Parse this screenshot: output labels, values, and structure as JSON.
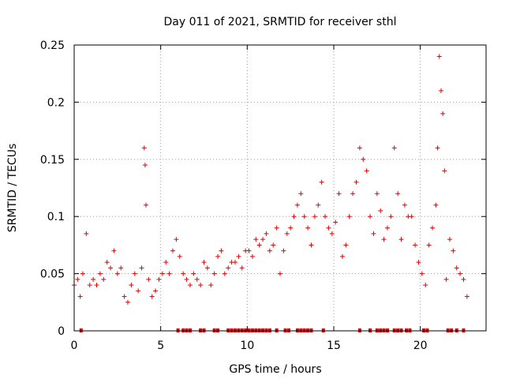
{
  "chart_data": {
    "type": "scatter",
    "title": "Day 011 of 2021, SRMTID for receiver sthl",
    "xlabel": "GPS time / hours",
    "ylabel": "SRMTID / TECUs",
    "xlim": [
      0,
      23.8
    ],
    "ylim": [
      0,
      0.25
    ],
    "grid": true,
    "legend": "none",
    "x_ticks": [
      0,
      5,
      10,
      15,
      20
    ],
    "y_ticks": [
      0,
      0.05,
      0.1,
      0.15,
      0.2,
      0.25
    ],
    "x_tick_labels": [
      "0",
      "5",
      "10",
      "15",
      "20"
    ],
    "y_tick_labels": [
      "0",
      "0.05",
      "0.1",
      "0.15",
      "0.2",
      "0.25"
    ],
    "marker": "+",
    "color": "#e00000",
    "series": [
      {
        "name": "SRMTID",
        "x": [
          0.0,
          0.2,
          0.35,
          0.5,
          0.7,
          0.9,
          1.1,
          1.3,
          1.5,
          1.7,
          1.9,
          2.1,
          2.3,
          2.5,
          2.7,
          2.9,
          3.1,
          3.3,
          3.5,
          3.7,
          3.9,
          4.05,
          4.1,
          4.15,
          4.3,
          4.5,
          4.7,
          4.9,
          5.1,
          5.3,
          5.5,
          5.7,
          5.9,
          6.1,
          6.3,
          6.5,
          6.7,
          6.9,
          7.1,
          7.3,
          7.5,
          7.7,
          7.9,
          8.1,
          8.3,
          8.5,
          8.7,
          8.9,
          9.1,
          9.3,
          9.5,
          9.7,
          9.9,
          10.1,
          10.3,
          10.5,
          10.7,
          10.9,
          11.1,
          11.3,
          11.5,
          11.7,
          11.9,
          12.1,
          12.3,
          12.5,
          12.7,
          12.9,
          13.1,
          13.3,
          13.5,
          13.7,
          13.9,
          14.1,
          14.3,
          14.5,
          14.7,
          14.9,
          15.1,
          15.3,
          15.5,
          15.7,
          15.9,
          16.1,
          16.3,
          16.5,
          16.7,
          16.9,
          17.1,
          17.3,
          17.5,
          17.7,
          17.9,
          18.1,
          18.3,
          18.5,
          18.7,
          18.9,
          19.1,
          19.3,
          19.5,
          19.7,
          19.9,
          20.1,
          20.3,
          20.5,
          20.7,
          20.9,
          21.0,
          21.1,
          21.2,
          21.3,
          21.4,
          21.5,
          21.7,
          21.9,
          22.1,
          22.3,
          22.5,
          22.7
        ],
        "y": [
          0.04,
          0.045,
          0.03,
          0.05,
          0.085,
          0.04,
          0.045,
          0.04,
          0.05,
          0.045,
          0.06,
          0.055,
          0.07,
          0.05,
          0.055,
          0.03,
          0.025,
          0.04,
          0.05,
          0.035,
          0.055,
          0.16,
          0.145,
          0.11,
          0.045,
          0.03,
          0.035,
          0.045,
          0.05,
          0.06,
          0.05,
          0.07,
          0.08,
          0.065,
          0.05,
          0.045,
          0.04,
          0.05,
          0.045,
          0.04,
          0.06,
          0.055,
          0.04,
          0.05,
          0.065,
          0.07,
          0.05,
          0.055,
          0.06,
          0.06,
          0.065,
          0.055,
          0.07,
          0.07,
          0.065,
          0.08,
          0.075,
          0.08,
          0.085,
          0.07,
          0.075,
          0.09,
          0.05,
          0.07,
          0.085,
          0.09,
          0.1,
          0.11,
          0.12,
          0.1,
          0.09,
          0.075,
          0.1,
          0.11,
          0.13,
          0.1,
          0.09,
          0.085,
          0.095,
          0.12,
          0.065,
          0.075,
          0.1,
          0.12,
          0.13,
          0.16,
          0.15,
          0.14,
          0.1,
          0.085,
          0.12,
          0.105,
          0.08,
          0.09,
          0.1,
          0.16,
          0.12,
          0.08,
          0.11,
          0.1,
          0.1,
          0.075,
          0.06,
          0.05,
          0.04,
          0.075,
          0.09,
          0.11,
          0.16,
          0.24,
          0.21,
          0.19,
          0.14,
          0.045,
          0.08,
          0.07,
          0.055,
          0.05,
          0.045,
          0.03
        ]
      }
    ],
    "data_gaps_x": [
      0.4,
      6.0,
      6.3,
      6.5,
      6.7,
      7.3,
      7.5,
      8.1,
      8.3,
      8.9,
      9.1,
      9.3,
      9.5,
      9.7,
      9.9,
      10.1,
      10.3,
      10.5,
      10.7,
      10.9,
      11.1,
      11.3,
      11.7,
      12.2,
      12.4,
      12.9,
      13.1,
      13.3,
      13.5,
      13.7,
      14.4,
      16.5,
      17.1,
      17.5,
      17.7,
      17.9,
      18.1,
      18.5,
      18.7,
      18.9,
      19.2,
      19.4,
      20.2,
      20.4,
      21.6,
      21.8,
      22.1,
      22.5
    ]
  }
}
